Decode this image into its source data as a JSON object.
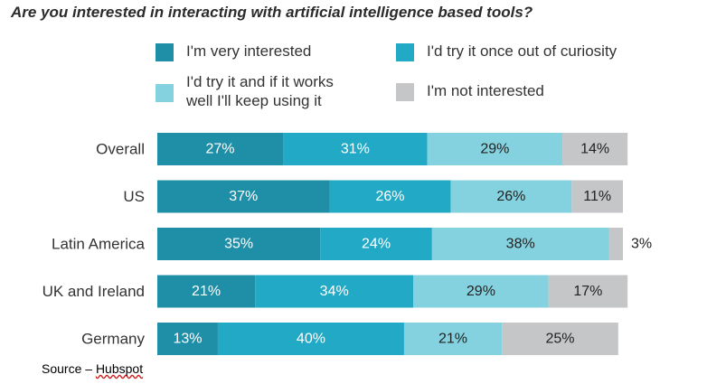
{
  "chart_data": {
    "type": "bar",
    "orientation": "horizontal",
    "stacked": true,
    "title": "Are you interested in interacting with artificial intelligence based tools?",
    "categories": [
      "Overall",
      "US",
      "Latin America",
      "UK and Ireland",
      "Germany"
    ],
    "series": [
      {
        "name": "I'm very interested",
        "values": [
          27,
          37,
          35,
          21,
          13
        ],
        "color": "#1f8fa8",
        "label_color": "#ffffff"
      },
      {
        "name": "I'd try it once out of curiosity",
        "values": [
          31,
          26,
          24,
          34,
          40
        ],
        "color": "#22a9c6",
        "label_color": "#ffffff"
      },
      {
        "name": "I'd try it and if it works well I'll keep using it",
        "values": [
          29,
          26,
          38,
          29,
          21
        ],
        "color": "#84d2df",
        "label_color": "#222222"
      },
      {
        "name": "I'm not interested",
        "values": [
          14,
          11,
          3,
          17,
          25
        ],
        "color": "#c4c6c8",
        "label_color": "#222222"
      }
    ],
    "data_labels": [
      [
        "27%",
        "31%",
        "29%",
        "14%"
      ],
      [
        "37%",
        "26%",
        "26%",
        "11%"
      ],
      [
        "35%",
        "24%",
        "38%",
        "3%"
      ],
      [
        "21%",
        "34%",
        "29%",
        "17%"
      ],
      [
        "13%",
        "40%",
        "21%",
        "25%"
      ]
    ],
    "unit": "%",
    "legend_position": "top",
    "grid": false
  },
  "legend": {
    "items": [
      {
        "lines": [
          "I'm very interested"
        ]
      },
      {
        "lines": [
          "I'd try it once out of curiosity"
        ]
      },
      {
        "lines": [
          "I'd try it and if it works",
          "well I'll keep using it"
        ]
      },
      {
        "lines": [
          "I'm not interested"
        ]
      }
    ]
  },
  "source": {
    "prefix": "Source – ",
    "name": "Hubspot"
  }
}
